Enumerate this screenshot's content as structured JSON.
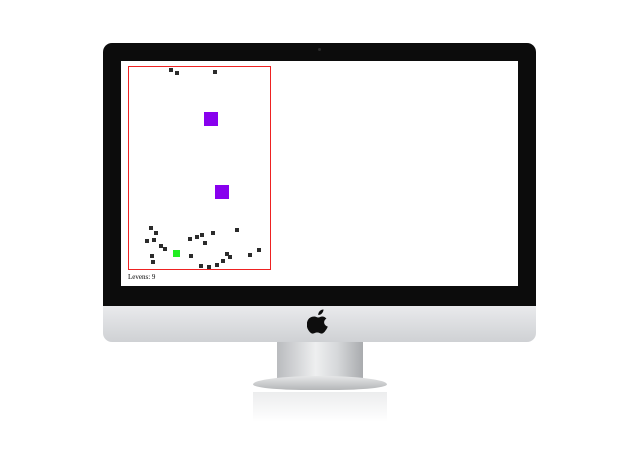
{
  "game": {
    "status": {
      "levels_text": "Levens: 9"
    },
    "colors": {
      "border": "#ee2222",
      "enemy": "#2b2b2b",
      "boss": "#8800ee",
      "player": "#22ee22",
      "bezel": "#0c0c0c"
    },
    "icons": {
      "brand": "apple-logo-icon"
    }
  }
}
